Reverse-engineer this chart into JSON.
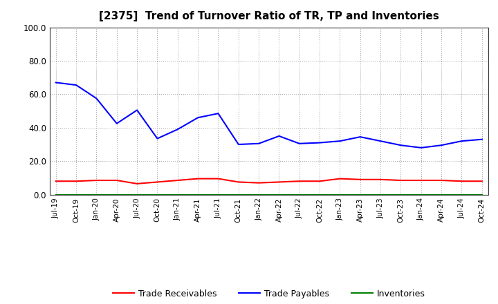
{
  "title": "[2375]  Trend of Turnover Ratio of TR, TP and Inventories",
  "x_labels": [
    "Jul-19",
    "Oct-19",
    "Jan-20",
    "Apr-20",
    "Jul-20",
    "Oct-20",
    "Jan-21",
    "Apr-21",
    "Jul-21",
    "Oct-21",
    "Jan-22",
    "Apr-22",
    "Jul-22",
    "Oct-22",
    "Jan-23",
    "Apr-23",
    "Jul-23",
    "Oct-23",
    "Jan-24",
    "Apr-24",
    "Jul-24",
    "Oct-24"
  ],
  "trade_payables": [
    67.0,
    65.5,
    57.5,
    42.5,
    50.5,
    33.5,
    39.0,
    46.0,
    48.5,
    30.0,
    30.5,
    35.0,
    30.5,
    31.0,
    32.0,
    34.5,
    32.0,
    29.5,
    28.0,
    29.5,
    32.0,
    33.0
  ],
  "trade_receivables": [
    8.0,
    8.0,
    8.5,
    8.5,
    6.5,
    7.5,
    8.5,
    9.5,
    9.5,
    7.5,
    7.0,
    7.5,
    8.0,
    8.0,
    9.5,
    9.0,
    9.0,
    8.5,
    8.5,
    8.5,
    8.0,
    8.0
  ],
  "inventories": [
    0.0,
    0.0,
    0.0,
    0.0,
    0.0,
    0.0,
    0.0,
    0.0,
    0.0,
    0.0,
    0.0,
    0.0,
    0.0,
    0.0,
    0.0,
    0.0,
    0.0,
    0.0,
    0.0,
    0.0,
    0.0,
    0.0
  ],
  "ylim": [
    0.0,
    100.0
  ],
  "yticks": [
    0.0,
    20.0,
    40.0,
    60.0,
    80.0,
    100.0
  ],
  "color_tr": "#ff0000",
  "color_tp": "#0000ff",
  "color_inv": "#008000",
  "bg_color": "#ffffff",
  "grid_color": "#999999",
  "title_fontsize": 11,
  "legend_labels": [
    "Trade Receivables",
    "Trade Payables",
    "Inventories"
  ]
}
